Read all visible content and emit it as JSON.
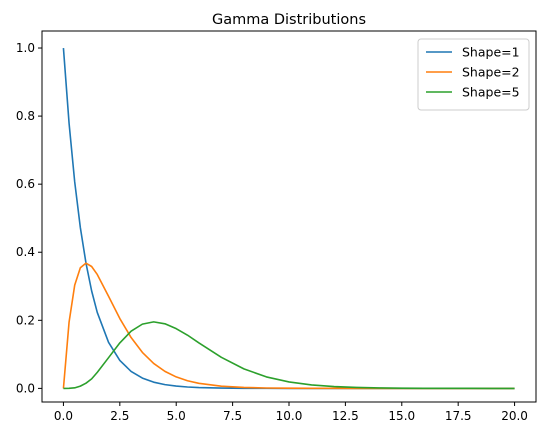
{
  "chart_data": {
    "type": "line",
    "title": "Gamma Distributions",
    "xlabel": "",
    "ylabel": "",
    "xlim": [
      -0.95,
      20.95
    ],
    "ylim": [
      -0.04,
      1.05
    ],
    "xticks": [
      0.0,
      2.5,
      5.0,
      7.5,
      10.0,
      12.5,
      15.0,
      17.5,
      20.0
    ],
    "xtick_labels": [
      "0.0",
      "2.5",
      "5.0",
      "7.5",
      "10.0",
      "12.5",
      "15.0",
      "17.5",
      "20.0"
    ],
    "yticks": [
      0.0,
      0.2,
      0.4,
      0.6,
      0.8,
      1.0
    ],
    "ytick_labels": [
      "0.0",
      "0.2",
      "0.4",
      "0.6",
      "0.8",
      "1.0"
    ],
    "grid": false,
    "legend_position": "top-right",
    "x": [
      0,
      0.25,
      0.5,
      0.75,
      1,
      1.25,
      1.5,
      2,
      2.5,
      3,
      3.5,
      4,
      4.5,
      5,
      5.5,
      6,
      7,
      8,
      9,
      10,
      11,
      12,
      13,
      14,
      15,
      16,
      17,
      18,
      19,
      20
    ],
    "series": [
      {
        "name": "Shape=1",
        "color": "#1f77b4",
        "values": [
          1.0,
          0.7788,
          0.6065,
          0.4724,
          0.3679,
          0.2865,
          0.2231,
          0.1353,
          0.0821,
          0.0498,
          0.0302,
          0.0183,
          0.0111,
          0.0067,
          0.0041,
          0.0025,
          0.0009,
          0.0003,
          0.0001,
          0.0,
          0.0,
          0.0,
          0.0,
          0.0,
          0.0,
          0.0,
          0.0,
          0.0,
          0.0,
          0.0
        ]
      },
      {
        "name": "Shape=2",
        "color": "#ff7f0e",
        "values": [
          0.0,
          0.1947,
          0.3033,
          0.3543,
          0.3679,
          0.3581,
          0.3347,
          0.2707,
          0.2052,
          0.1494,
          0.1057,
          0.0733,
          0.05,
          0.0337,
          0.0225,
          0.0149,
          0.0064,
          0.0027,
          0.0011,
          0.0005,
          0.0002,
          0.0001,
          0.0,
          0.0,
          0.0,
          0.0,
          0.0,
          0.0,
          0.0,
          0.0
        ]
      },
      {
        "name": "Shape=5",
        "color": "#2ca02c",
        "values": [
          0.0,
          0.0001,
          0.0016,
          0.0066,
          0.0153,
          0.028,
          0.0471,
          0.0902,
          0.1336,
          0.168,
          0.1888,
          0.1954,
          0.1898,
          0.1755,
          0.1564,
          0.1339,
          0.0912,
          0.0573,
          0.0337,
          0.0189,
          0.0102,
          0.0053,
          0.0027,
          0.0013,
          0.0006,
          0.0003,
          0.0001,
          0.0001,
          0.0,
          0.0
        ]
      }
    ]
  }
}
